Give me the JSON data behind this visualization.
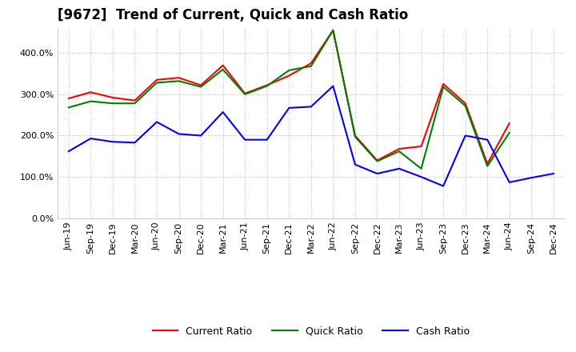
{
  "title": "[9672]  Trend of Current, Quick and Cash Ratio",
  "x_labels": [
    "Jun-19",
    "Sep-19",
    "Dec-19",
    "Mar-20",
    "Jun-20",
    "Sep-20",
    "Dec-20",
    "Mar-21",
    "Jun-21",
    "Sep-21",
    "Dec-21",
    "Mar-22",
    "Jun-22",
    "Sep-22",
    "Dec-22",
    "Mar-23",
    "Jun-23",
    "Sep-23",
    "Dec-23",
    "Mar-24",
    "Jun-24",
    "Sep-24",
    "Dec-24"
  ],
  "current_ratio": [
    290,
    305,
    292,
    285,
    335,
    340,
    322,
    370,
    302,
    322,
    345,
    375,
    455,
    200,
    140,
    168,
    174,
    325,
    278,
    132,
    230,
    null,
    null
  ],
  "quick_ratio": [
    268,
    283,
    278,
    278,
    328,
    332,
    318,
    360,
    300,
    320,
    358,
    368,
    455,
    197,
    138,
    162,
    120,
    318,
    272,
    126,
    207,
    null,
    null
  ],
  "cash_ratio": [
    162,
    193,
    185,
    183,
    233,
    204,
    200,
    257,
    190,
    190,
    267,
    270,
    320,
    130,
    108,
    120,
    100,
    78,
    200,
    190,
    87,
    98,
    108
  ],
  "ylim": [
    0,
    460
  ],
  "yticks": [
    0,
    100,
    200,
    300,
    400
  ],
  "ytick_labels": [
    "0.0%",
    "100.0%",
    "200.0%",
    "300.0%",
    "400.0%"
  ],
  "current_color": "#ff0000",
  "quick_color": "#008000",
  "cash_color": "#0000ff",
  "line_width": 1.5,
  "bg_color": "#ffffff",
  "plot_bg_color": "#ffffff",
  "grid_color": "#aaaaaa",
  "legend_labels": [
    "Current Ratio",
    "Quick Ratio",
    "Cash Ratio"
  ],
  "title_fontsize": 12,
  "tick_fontsize": 8,
  "legend_fontsize": 9
}
